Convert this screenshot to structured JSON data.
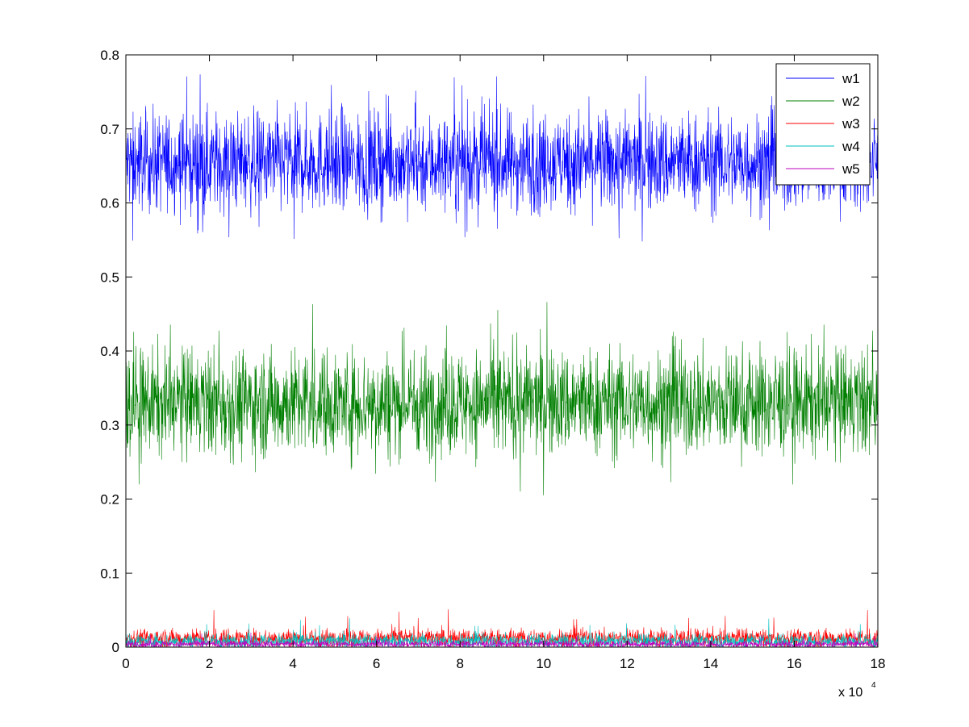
{
  "chart_data": {
    "type": "line",
    "title": "",
    "xlabel": "",
    "ylabel": "",
    "x_multiplier_label": "x 10",
    "x_multiplier_exp": "4",
    "xlim": [
      0,
      18
    ],
    "ylim": [
      0,
      0.8
    ],
    "x_ticks": [
      0,
      2,
      4,
      6,
      8,
      10,
      12,
      14,
      16,
      18
    ],
    "y_ticks": [
      0,
      0.1,
      0.2,
      0.3,
      0.4,
      0.5,
      0.6,
      0.7,
      0.8
    ],
    "x_tick_labels": [
      "0",
      "2",
      "4",
      "6",
      "8",
      "10",
      "12",
      "14",
      "16",
      "18"
    ],
    "y_tick_labels": [
      "0",
      "0.1",
      "0.2",
      "0.3",
      "0.4",
      "0.5",
      "0.6",
      "0.7",
      "0.8"
    ],
    "grid": false,
    "legend_position": "top-right",
    "series": [
      {
        "name": "w1",
        "color": "#0000ff",
        "mean": 0.655,
        "typical_range": [
          0.59,
          0.72
        ],
        "extremes": [
          0.51,
          0.775
        ]
      },
      {
        "name": "w2",
        "color": "#007f00",
        "mean": 0.33,
        "typical_range": [
          0.26,
          0.4
        ],
        "extremes": [
          0.19,
          0.47
        ]
      },
      {
        "name": "w3",
        "color": "#ff0000",
        "mean": 0.012,
        "typical_range": [
          0.0,
          0.025
        ],
        "extremes": [
          0.0,
          0.052
        ]
      },
      {
        "name": "w4",
        "color": "#00bfbf",
        "mean": 0.008,
        "typical_range": [
          0.0,
          0.02
        ],
        "extremes": [
          0.0,
          0.04
        ]
      },
      {
        "name": "w5",
        "color": "#bf00bf",
        "mean": 0.004,
        "typical_range": [
          0.0,
          0.01
        ],
        "extremes": [
          0.0,
          0.02
        ]
      }
    ]
  }
}
